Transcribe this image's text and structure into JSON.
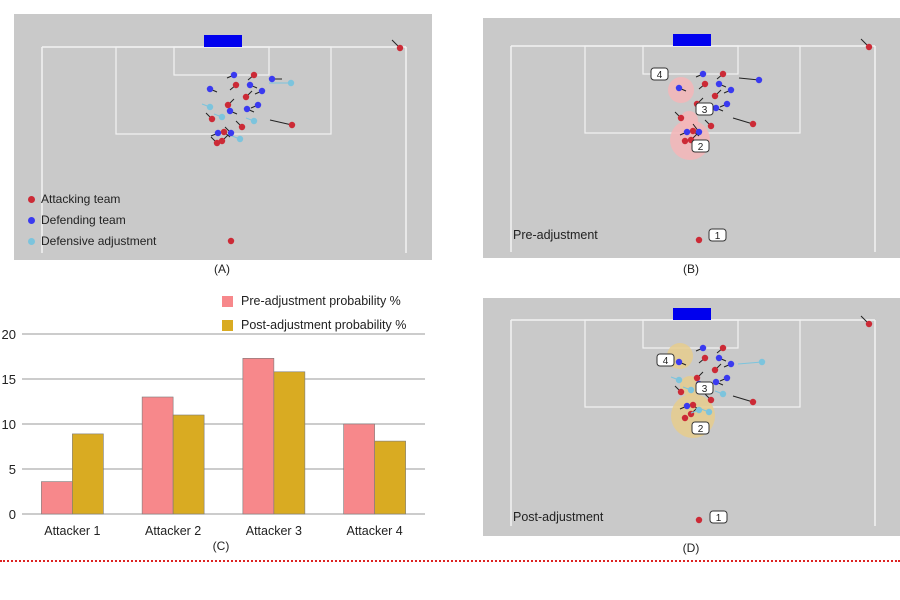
{
  "colors": {
    "attacking": "#cc2a36",
    "defending": "#3a3af0",
    "adjusted": "#7cc4dd",
    "pre_bar": "#f7888b",
    "post_bar": "#d9ab22",
    "pitch": "#c9c9c9",
    "goal": "#0000ee",
    "pre_zone": "#f4b6b8",
    "post_zone": "#e6cd8d"
  },
  "panels": {
    "a": {
      "caption": "(A)"
    },
    "b": {
      "caption": "(B)",
      "note": "Pre-adjustment"
    },
    "c": {
      "caption": "(C)"
    },
    "d": {
      "caption": "(D)",
      "note": "Post-adjustment"
    }
  },
  "legend": {
    "attacking": "Attacking team",
    "defending": "Defending team",
    "adjustment": "Defensive adjustment"
  },
  "attacker_labels": [
    "1",
    "2",
    "3",
    "4"
  ],
  "chart_data": {
    "type": "bar",
    "categories": [
      "Attacker 1",
      "Attacker 2",
      "Attacker 3",
      "Attacker 4"
    ],
    "series": [
      {
        "name": "Pre-adjustment probability %",
        "values": [
          3.6,
          13.0,
          17.3,
          10.0
        ]
      },
      {
        "name": "Post-adjustment probability %",
        "values": [
          8.9,
          11.0,
          15.8,
          8.1
        ]
      }
    ],
    "yticks": [
      0,
      5,
      10,
      15,
      20
    ],
    "ylim": [
      0,
      20
    ],
    "grid": true,
    "legend_position": "top-right"
  }
}
